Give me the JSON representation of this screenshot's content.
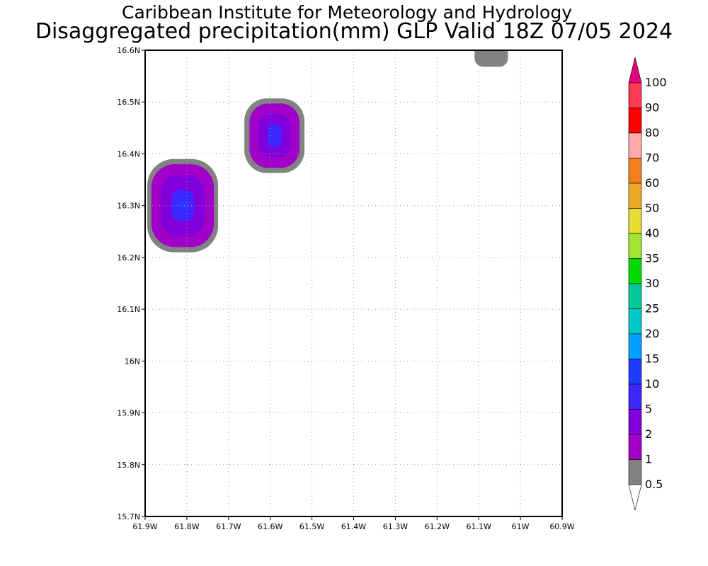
{
  "header": {
    "title_line1": "Caribbean Institute for Meteorology and Hydrology",
    "title_line2": "Disaggregated precipitation(mm) GLP Valid 18Z 07/05 2024"
  },
  "map": {
    "lon_range": [
      -61.9,
      -60.9
    ],
    "lat_range": [
      15.7,
      16.6
    ],
    "x_tick_labels": [
      "61.9W",
      "61.8W",
      "61.7W",
      "61.6W",
      "61.5W",
      "61.4W",
      "61.3W",
      "61.2W",
      "61.1W",
      "61W",
      "60.9W"
    ],
    "y_tick_labels": [
      "16.6N",
      "16.5N",
      "16.4N",
      "16.3N",
      "16.2N",
      "16.1N",
      "16N",
      "15.9N",
      "15.8N",
      "15.7N"
    ],
    "grid": true,
    "grid_style": "dotted",
    "precip_cells": [
      {
        "name": "cell-west",
        "lon": -61.81,
        "lat": 16.3,
        "levels": [
          {
            "level": "0.5",
            "rx_deg": 0.085,
            "ry_deg": 0.09
          },
          {
            "level": "1",
            "rx_deg": 0.075,
            "ry_deg": 0.08
          },
          {
            "level": "2",
            "rx_deg": 0.052,
            "ry_deg": 0.058
          },
          {
            "level": "5",
            "rx_deg": 0.027,
            "ry_deg": 0.03
          },
          {
            "level": "10",
            "rx_deg": 0.007,
            "ry_deg": 0.008
          }
        ]
      },
      {
        "name": "cell-central",
        "lon": -61.59,
        "lat": 16.435,
        "levels": [
          {
            "level": "0.5",
            "rx_deg": 0.072,
            "ry_deg": 0.072
          },
          {
            "level": "1",
            "rx_deg": 0.06,
            "ry_deg": 0.062
          },
          {
            "level": "2",
            "rx_deg": 0.038,
            "ry_deg": 0.042
          },
          {
            "level": "5",
            "rx_deg": 0.017,
            "ry_deg": 0.022
          }
        ]
      },
      {
        "name": "cell-northeast",
        "lon": -61.07,
        "lat": 16.59,
        "levels": [
          {
            "level": "0.5",
            "rx_deg": 0.04,
            "ry_deg": 0.022
          }
        ]
      }
    ]
  },
  "legend": {
    "labels": [
      "100",
      "90",
      "80",
      "70",
      "60",
      "50",
      "40",
      "35",
      "30",
      "25",
      "20",
      "15",
      "10",
      "5",
      "2",
      "1",
      "0.5"
    ],
    "colors": [
      "#ff3a55",
      "#ff0000",
      "#ffaaaa",
      "#f47f20",
      "#e8a828",
      "#e6dc32",
      "#a0e632",
      "#00dc00",
      "#00c896",
      "#00c8c8",
      "#00a0ff",
      "#1e3cff",
      "#3c28ff",
      "#8200dc",
      "#a000c8",
      "#828282"
    ],
    "top_arrow_color": "#e6007a",
    "bottom_arrow_color": "#ffffff"
  }
}
